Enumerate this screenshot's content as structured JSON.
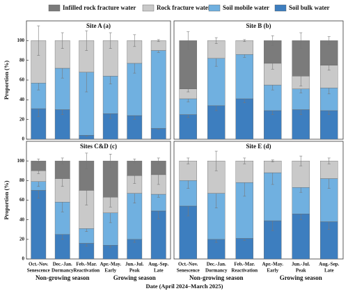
{
  "chart_data": [
    {
      "type": "stacked-bar",
      "title": "Site A (a)",
      "ylabel": "Proportion (%)",
      "ylim": [
        0,
        120
      ],
      "yticks": [
        0,
        20,
        40,
        60,
        80,
        100
      ],
      "series": [
        {
          "name": "Soil bulk water",
          "color": "#3d7ebf",
          "values": [
            31,
            30,
            4,
            26,
            24,
            11
          ],
          "errors": [
            8,
            5,
            1,
            5,
            4,
            1
          ]
        },
        {
          "name": "Soil mobile water",
          "color": "#70b0e0",
          "values": [
            26,
            42,
            64,
            38,
            53,
            79
          ],
          "errors": [
            7,
            10,
            20,
            8,
            10,
            2
          ]
        },
        {
          "name": "Rock fracture water",
          "color": "#c9c9c9",
          "values": [
            43,
            28,
            32,
            36,
            23,
            10
          ],
          "errors": [
            15,
            8,
            10,
            8,
            6,
            1
          ]
        },
        {
          "name": "Infilled rock fracture water",
          "color": "#7b7b7b",
          "values": [
            0,
            0,
            0,
            0,
            0,
            0
          ],
          "errors": [
            null,
            null,
            null,
            null,
            null,
            null
          ]
        }
      ]
    },
    {
      "type": "stacked-bar",
      "title": "Site B (b)",
      "ylim": [
        0,
        120
      ],
      "series": [
        {
          "values": [
            25,
            34,
            41,
            29,
            30,
            29
          ],
          "errors": [
            3,
            5,
            4,
            4,
            5,
            4
          ]
        },
        {
          "values": [
            16,
            48,
            45,
            26,
            21,
            23
          ],
          "errors": [
            3,
            8,
            3,
            5,
            4,
            6
          ]
        },
        {
          "values": [
            10,
            18,
            14,
            22,
            13,
            23
          ],
          "errors": [
            3,
            3,
            1,
            6,
            10,
            5
          ]
        },
        {
          "values": [
            49,
            0,
            0,
            23,
            36,
            25
          ],
          "errors": [
            9,
            null,
            null,
            5,
            8,
            4
          ]
        }
      ]
    },
    {
      "type": "stacked-bar",
      "title": "Sites C&D (c)",
      "ylabel": "Proportion (%)",
      "ylim": [
        0,
        120
      ],
      "yticks": [
        0,
        20,
        40,
        60,
        80,
        100
      ],
      "categories": [
        "Oct.-Nov.",
        "Dec.-Jan.",
        "Feb.-Mar.",
        "Apr.-May.",
        "Jun.-Jul.",
        "Aug.-Sep."
      ],
      "phases": [
        "Senescence",
        "Dormancy",
        "Reactivation",
        "Early",
        "Peak",
        "Late"
      ],
      "groups": [
        "Non-growing season",
        "Growing season"
      ],
      "xlabel": "Date (April 2024–March 2025)",
      "series": [
        {
          "values": [
            70,
            25,
            16,
            14,
            20,
            49
          ],
          "errors": [
            8,
            5,
            3,
            2,
            3,
            8
          ]
        },
        {
          "values": [
            9,
            33,
            15,
            33,
            47,
            17
          ],
          "errors": [
            5,
            10,
            3,
            10,
            10,
            3
          ]
        },
        {
          "values": [
            11,
            24,
            39,
            16,
            18,
            20
          ],
          "errors": [
            3,
            8,
            15,
            10,
            8,
            10
          ]
        },
        {
          "values": [
            10,
            18,
            30,
            37,
            15,
            14
          ],
          "errors": [
            2,
            3,
            8,
            7,
            2,
            3
          ]
        }
      ]
    },
    {
      "type": "stacked-bar",
      "title": "Site E (d)",
      "ylim": [
        0,
        120
      ],
      "categories": [
        "Oct.-Nov.",
        "Dec.-Jan.",
        "Feb.-Mar.",
        "Apr.-May.",
        "Jun.-Jul.",
        "Aug.-Sep."
      ],
      "phases": [
        "Senescence",
        "Dormancy",
        "Reactivation",
        "Early",
        "Peak",
        "Late"
      ],
      "groups": [
        "Non-growing season",
        "Growing season"
      ],
      "series": [
        {
          "values": [
            54,
            20,
            21,
            39,
            46,
            38
          ],
          "errors": [
            10,
            3,
            2,
            10,
            6,
            8
          ]
        },
        {
          "values": [
            26,
            47,
            57,
            49,
            27,
            44
          ],
          "errors": [
            8,
            15,
            14,
            12,
            5,
            10
          ]
        },
        {
          "values": [
            20,
            33,
            22,
            12,
            27,
            18
          ],
          "errors": [
            3,
            10,
            3,
            1,
            5,
            3
          ]
        },
        {
          "values": [
            0,
            0,
            0,
            0,
            0,
            0
          ],
          "errors": [
            null,
            null,
            null,
            null,
            null,
            null
          ]
        }
      ]
    }
  ]
}
